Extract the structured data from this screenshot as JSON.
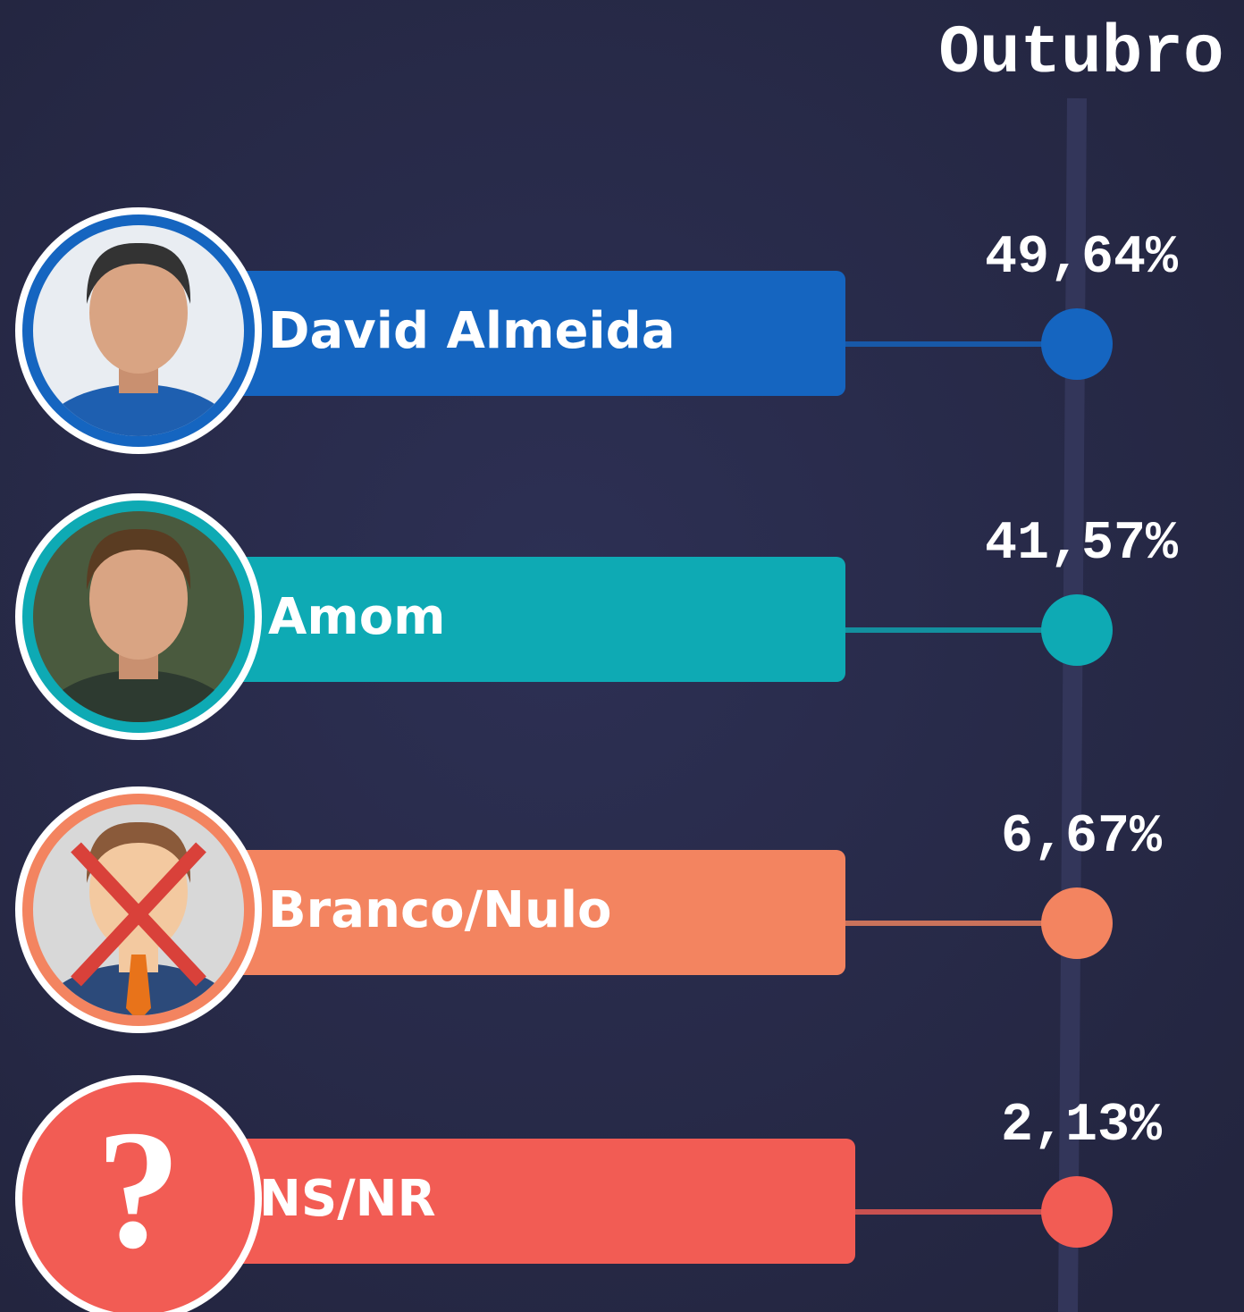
{
  "header": {
    "title": "Outubro"
  },
  "items": [
    {
      "name": "David Almeida",
      "value": "49,64%",
      "color": "#1565c0"
    },
    {
      "name": "Amom",
      "value": "41,57%",
      "color": "#0eaab4"
    },
    {
      "name": "Branco/Nulo",
      "value": "6,67%",
      "color": "#f38460"
    },
    {
      "name": "NS/NR",
      "value": "2,13%",
      "color": "#f25c54",
      "icon": "?"
    }
  ]
}
